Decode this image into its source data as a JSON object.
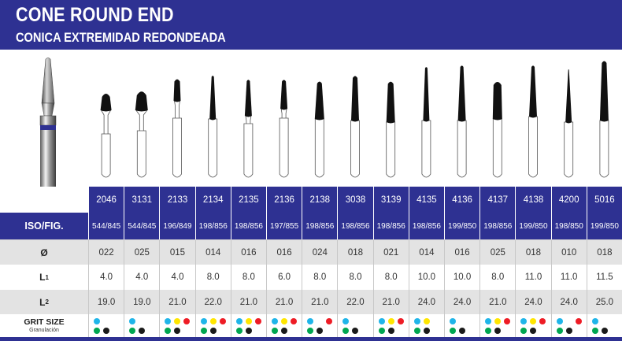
{
  "header": {
    "title": "CONE ROUND END",
    "subtitle": "CONICA EXTREMIDAD REDONDEADA"
  },
  "colors": {
    "header_blue": "#2e3192",
    "cyan": "#1fb5e9",
    "yellow": "#ffe600",
    "red": "#ee1c25",
    "green": "#00a651",
    "black": "#1a1a1a"
  },
  "labels": {
    "iso": "ISO/FIG.",
    "diameter": "Ø",
    "l1": "L",
    "l1_sub": "1",
    "l2": "L",
    "l2_sub": "2",
    "grit": "GRIT SIZE",
    "grit_sub": "Granulación"
  },
  "burs": [
    {
      "code": "2046",
      "iso": "544/845",
      "diameter": "022",
      "l1": "4.0",
      "l2": "19.0",
      "grit": [
        "cyan",
        "green",
        "black"
      ]
    },
    {
      "code": "3131",
      "iso": "544/845",
      "diameter": "025",
      "l1": "4.0",
      "l2": "19.0",
      "grit": [
        "cyan",
        "green",
        "black"
      ]
    },
    {
      "code": "2133",
      "iso": "196/849",
      "diameter": "015",
      "l1": "4.0",
      "l2": "21.0",
      "grit": [
        "cyan",
        "yellow",
        "red",
        "green",
        "black"
      ]
    },
    {
      "code": "2134",
      "iso": "198/856",
      "diameter": "014",
      "l1": "8.0",
      "l2": "22.0",
      "grit": [
        "cyan",
        "yellow",
        "red",
        "green",
        "black"
      ]
    },
    {
      "code": "2135",
      "iso": "198/856",
      "diameter": "016",
      "l1": "8.0",
      "l2": "21.0",
      "grit": [
        "cyan",
        "yellow",
        "red",
        "green",
        "black"
      ]
    },
    {
      "code": "2136",
      "iso": "197/855",
      "diameter": "016",
      "l1": "6.0",
      "l2": "21.0",
      "grit": [
        "cyan",
        "yellow",
        "red",
        "green",
        "black"
      ]
    },
    {
      "code": "2138",
      "iso": "198/856",
      "diameter": "024",
      "l1": "8.0",
      "l2": "21.0",
      "grit": [
        "cyan",
        "red",
        "green",
        "black"
      ]
    },
    {
      "code": "3038",
      "iso": "198/856",
      "diameter": "018",
      "l1": "8.0",
      "l2": "22.0",
      "grit": [
        "cyan",
        "green",
        "black"
      ]
    },
    {
      "code": "3139",
      "iso": "198/856",
      "diameter": "021",
      "l1": "8.0",
      "l2": "21.0",
      "grit": [
        "cyan",
        "yellow",
        "red",
        "green",
        "black"
      ]
    },
    {
      "code": "4135",
      "iso": "198/856",
      "diameter": "014",
      "l1": "10.0",
      "l2": "24.0",
      "grit": [
        "cyan",
        "yellow",
        "green",
        "black"
      ]
    },
    {
      "code": "4136",
      "iso": "199/850",
      "diameter": "016",
      "l1": "10.0",
      "l2": "24.0",
      "grit": [
        "cyan",
        "green",
        "black"
      ]
    },
    {
      "code": "4137",
      "iso": "198/856",
      "diameter": "025",
      "l1": "8.0",
      "l2": "21.0",
      "grit": [
        "cyan",
        "yellow",
        "red",
        "green",
        "black"
      ]
    },
    {
      "code": "4138",
      "iso": "199/850",
      "diameter": "018",
      "l1": "11.0",
      "l2": "24.0",
      "grit": [
        "cyan",
        "yellow",
        "red",
        "green",
        "black"
      ]
    },
    {
      "code": "4200",
      "iso": "198/850",
      "diameter": "010",
      "l1": "11.0",
      "l2": "24.0",
      "grit": [
        "cyan",
        "red",
        "green",
        "black"
      ]
    },
    {
      "code": "5016",
      "iso": "199/850",
      "diameter": "018",
      "l1": "11.5",
      "l2": "25.0",
      "grit": [
        "cyan",
        "green",
        "black"
      ]
    }
  ]
}
